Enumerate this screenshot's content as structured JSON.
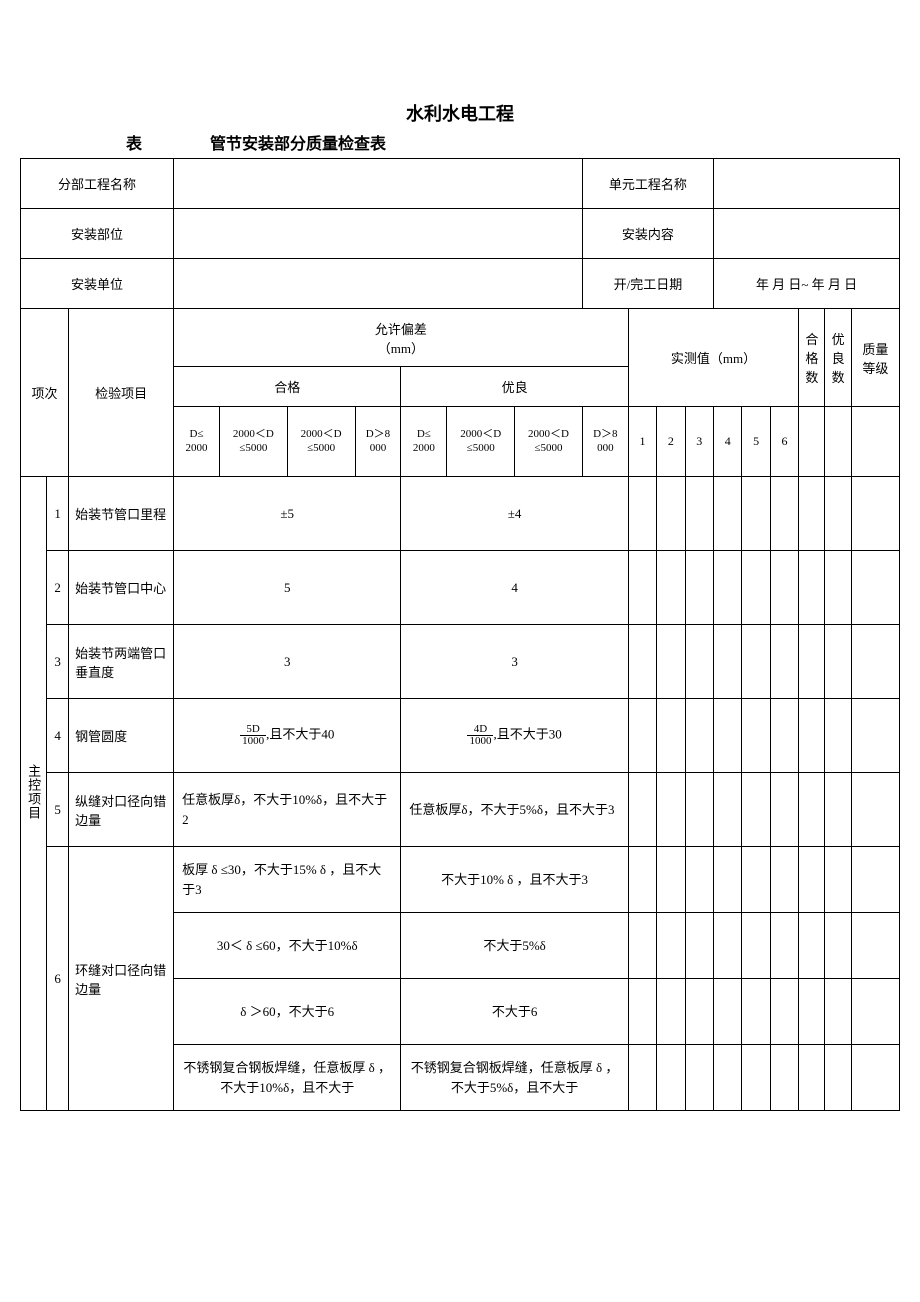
{
  "titles": {
    "main": "水利水电工程",
    "biao": "表",
    "sub": "管节安装部分质量检查表"
  },
  "header_labels": {
    "fenbu": "分部工程名称",
    "danyuan": "单元工程名称",
    "anzhuang_buwei": "安装部位",
    "anzhuang_neirong": "安装内容",
    "anzhuang_danwei": "安装单位",
    "kaiwangong": "开/完工日期",
    "date_value": "年 月 日~   年 月 日"
  },
  "col_headers": {
    "xiangci": "项次",
    "jianyan": "检验项目",
    "yunxu": "允许偏差",
    "yunxu_unit": "（mm）",
    "hege": "合格",
    "youliang": "优良",
    "shicezhi": "实测值（mm）",
    "hegeshu1": "合",
    "hegeshu2": "格",
    "hegeshu3": "数",
    "youliangshu1": "优",
    "youliangshu2": "良",
    "youliangshu3": "数",
    "zhiliang": "质量",
    "zhiliang2": "等级",
    "d_ranges": [
      "D≤\n2000",
      "2000＜D\n≤5000",
      "2000＜D\n≤5000",
      "D＞8\n000",
      "D≤\n2000",
      "2000＜D\n≤5000",
      "2000＜D\n≤5000",
      "D＞8\n000"
    ],
    "meas_nums": [
      "1",
      "2",
      "3",
      "4",
      "5",
      "6"
    ]
  },
  "group_label": "主控项目",
  "rows": [
    {
      "n": "1",
      "name": "始装节管口里程",
      "hg": "±5",
      "yl": "±4",
      "hg_center": true,
      "yl_center": true
    },
    {
      "n": "2",
      "name": "始装节管口中心",
      "hg": "5",
      "yl": "4",
      "hg_center": true,
      "yl_center": true
    },
    {
      "n": "3",
      "name": "始装节两端管口垂直度",
      "hg": "3",
      "yl": "3",
      "hg_center": true,
      "yl_center": true
    }
  ],
  "row4": {
    "n": "4",
    "name": "钢管圆度",
    "hg_suffix": ",且不大于40",
    "yl_suffix": ",且不大于30",
    "hg_frac_num": "5D",
    "hg_frac_den": "1000",
    "yl_frac_num": "4D",
    "yl_frac_den": "1000"
  },
  "row5": {
    "n": "5",
    "name": "纵缝对口径向错边量",
    "hg": "任意板厚δ，不大于10%δ，且不大于2",
    "yl": "任意板厚δ，不大于5%δ，且不大于3"
  },
  "row6": {
    "n": "6",
    "name": "环缝对口径向错边量",
    "subs": [
      {
        "hg": "板厚 δ ≤30，不大于15% δ ，且不大于3",
        "yl": "不大于10% δ ，且不大于3",
        "hg_align": "left",
        "yl_align": "center"
      },
      {
        "hg": "30＜ δ ≤60，不大于10%δ",
        "yl": "不大于5%δ",
        "hg_align": "center",
        "yl_align": "center"
      },
      {
        "hg": "δ ＞60，不大于6",
        "yl": "不大于6",
        "hg_align": "center",
        "yl_align": "center"
      },
      {
        "hg": "不锈钢复合钢板焊缝，任意板厚 δ ，不大于10%δ，且不大于",
        "yl": "不锈钢复合钢板焊缝，任意板厚 δ ，不大于5%δ，且不大于",
        "hg_align": "center",
        "yl_align": "center"
      }
    ]
  }
}
